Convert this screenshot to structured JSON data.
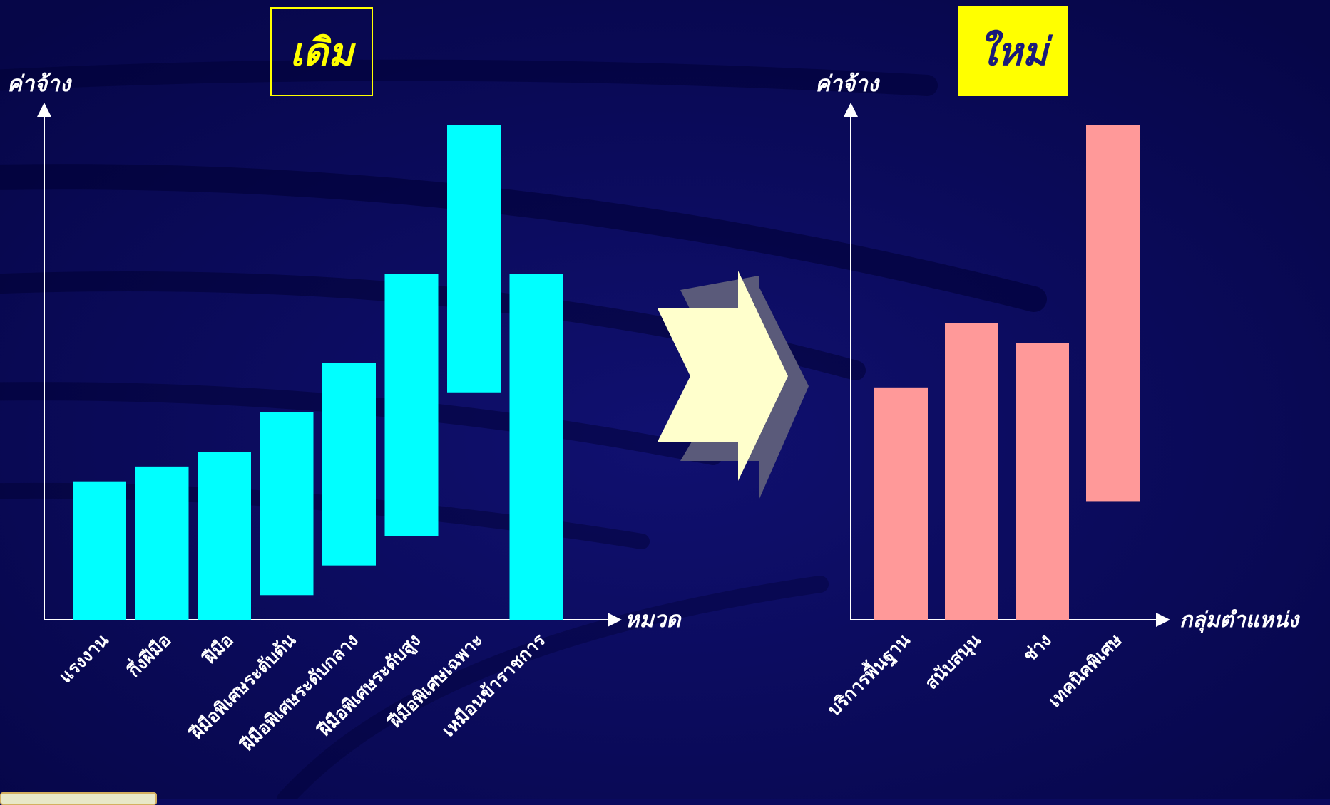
{
  "colors": {
    "background": "#0a0a5e",
    "old_bars": "#00ffff",
    "new_bars": "#ff9999",
    "axis": "#ffffff",
    "title": "#ffff00",
    "arrow": "#ffffcc"
  },
  "chart_data": [
    {
      "type": "bar",
      "title": "เดิม",
      "ylabel": "ค่าจ้าง",
      "xlabel": "หมวด",
      "categories": [
        "แรงงาน",
        "กึ่งฝีมือ",
        "ฝีมือ",
        "ฝีมือพิเศษระดับต้น",
        "ฝีมือพิเศษระดับกลาง",
        "ฝีมือพิเศษระดับสูง",
        "ฝีมือพิเศษเฉพาะ",
        "เหมือนข้าราชการ"
      ],
      "ranges": [
        [
          0,
          28
        ],
        [
          0,
          31
        ],
        [
          0,
          34
        ],
        [
          5,
          42
        ],
        [
          11,
          52
        ],
        [
          17,
          70
        ],
        [
          46,
          100
        ],
        [
          0,
          70
        ]
      ],
      "ylim": [
        0,
        100
      ],
      "grid": false
    },
    {
      "type": "bar",
      "title": "ใหม่",
      "ylabel": "ค่าจ้าง",
      "xlabel": "กลุ่มตำแหน่ง",
      "categories": [
        "บริการพื้นฐาน",
        "สนับสนุน",
        "ช่าง",
        "เทคนิคพิเศษ"
      ],
      "ranges": [
        [
          0,
          47
        ],
        [
          0,
          60
        ],
        [
          0,
          56
        ],
        [
          24,
          100
        ]
      ],
      "ylim": [
        0,
        100
      ],
      "grid": false
    }
  ]
}
